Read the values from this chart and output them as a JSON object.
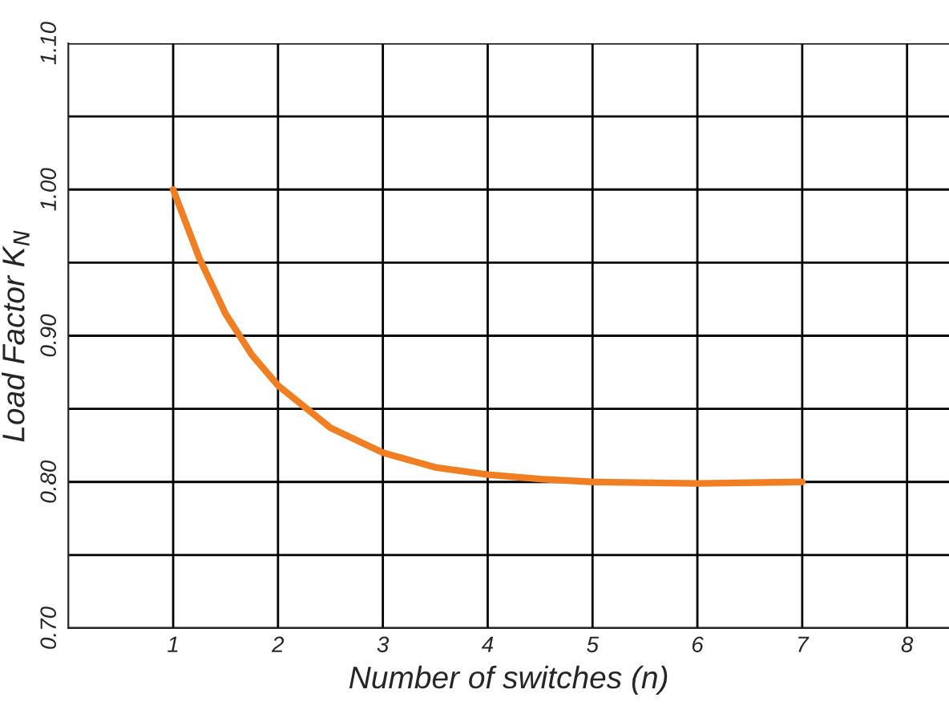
{
  "chart_data": {
    "type": "line",
    "xlabel": "Number of switches (n)",
    "ylabel": "Load Factor K$_{N}$",
    "x": [
      1,
      1.25,
      1.5,
      1.75,
      2,
      2.5,
      3,
      3.5,
      4,
      4.5,
      5,
      6,
      7
    ],
    "series": [
      {
        "color": "#f07f23",
        "values": [
          1.0,
          0.953,
          0.915,
          0.887,
          0.866,
          0.837,
          0.82,
          0.81,
          0.805,
          0.802,
          0.8,
          0.799,
          0.8
        ]
      }
    ],
    "xlim": [
      0.0,
      8.4
    ],
    "xticks": [
      1,
      2,
      3,
      4,
      5,
      6,
      7,
      8
    ],
    "ylim": [
      0.7,
      1.1
    ],
    "yticks": [
      {
        "value": 0.7,
        "label": "0.70"
      },
      {
        "value": 0.75,
        "label": null
      },
      {
        "value": 0.8,
        "label": "0.80"
      },
      {
        "value": 0.85,
        "label": null
      },
      {
        "value": 0.9,
        "label": "0.90"
      },
      {
        "value": 0.95,
        "label": null
      },
      {
        "value": 1.0,
        "label": "1.00"
      },
      {
        "value": 1.05,
        "label": null
      },
      {
        "value": 1.1,
        "label": "1.10"
      }
    ],
    "grid": true,
    "marker": "none",
    "line_style": "solid",
    "legend": false
  }
}
